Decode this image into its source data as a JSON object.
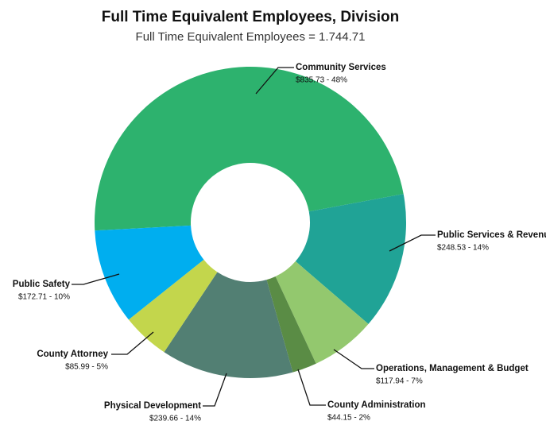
{
  "chart_data": {
    "type": "donut",
    "title": "Full Time Equivalent Employees, Division",
    "subtitle": "Full Time Equivalent Employees = 1.744.71",
    "categories": [
      "Community Services",
      "Public Services & Revenue",
      "Operations, Management & Budget",
      "County Administration",
      "Physical Development",
      "County Attorney",
      "Public Safety"
    ],
    "values": [
      835.73,
      248.53,
      117.94,
      44.15,
      239.66,
      85.99,
      172.71
    ],
    "value_labels": [
      "$835.73 - 48%",
      "$248.53 - 14%",
      "$117.94 - 7%",
      "$44.15 - 2%",
      "$239.66 - 14%",
      "$85.99 - 5%",
      "$172.71 - 10%"
    ],
    "colors": [
      "#2db26e",
      "#20a396",
      "#93c86e",
      "#5a8c45",
      "#527f73",
      "#c3d64c",
      "#00aeef"
    ]
  }
}
